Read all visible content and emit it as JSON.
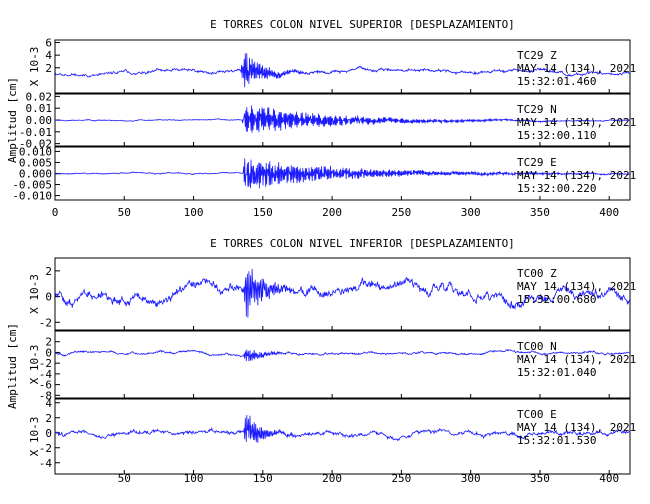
{
  "chart_data": [
    {
      "type": "line",
      "title": "E TORRES COLON NIVEL SUPERIOR [DESPLAZAMIENTO]",
      "ylabel": "Amplitud [cm]",
      "xlim": [
        0,
        415
      ],
      "xticks": [
        "0",
        "50",
        "100",
        "150",
        "200",
        "250",
        "300",
        "350",
        "400"
      ],
      "line_color": "#1c1cff",
      "panels": [
        {
          "channel": "TC29 Z",
          "ylim": [
            -2,
            6.4
          ],
          "yunit_label": "X 10-3",
          "yticks": [
            "6",
            "4",
            "2"
          ],
          "annotation": [
            "TC29   Z",
            "MAY 14 (134), 2021",
            "15:32:01.460"
          ],
          "series": {
            "base_amp": 0.35,
            "event_start": 134,
            "peak": 4.2,
            "decay": 14,
            "freq": 1.6,
            "offset": 1.2,
            "seed": 11
          }
        },
        {
          "channel": "TC29 N",
          "ylim": [
            -0.022,
            0.022
          ],
          "yunit_label": "",
          "yticks": [
            "0.02",
            "0.01",
            "0.00",
            "-0.01",
            "-0.02"
          ],
          "annotation": [
            "TC29   N",
            "MAY 14 (134), 2021",
            "15:32:00.110"
          ],
          "series": {
            "base_amp": 0.0006,
            "event_start": 135,
            "peak": 0.015,
            "decay": 60,
            "freq": 1.2,
            "offset": 0,
            "seed": 23
          }
        },
        {
          "channel": "TC29 E",
          "ylim": [
            -0.012,
            0.012
          ],
          "yunit_label": "",
          "yticks": [
            "0.010",
            "0.005",
            "0.000",
            "-0.005",
            "-0.010"
          ],
          "annotation": [
            "TC29   E",
            "MAY 14 (134), 2021",
            "15:32:00.220"
          ],
          "series": {
            "base_amp": 0.0004,
            "event_start": 135,
            "peak": 0.008,
            "decay": 70,
            "freq": 1.1,
            "offset": 0,
            "seed": 37
          }
        }
      ]
    },
    {
      "type": "line",
      "title": "E TORRES COLON NIVEL INFERIOR [DESPLAZAMIENTO]",
      "ylabel": "Amplitud [cm]",
      "xlim": [
        0,
        415
      ],
      "xticks": [
        "50",
        "100",
        "150",
        "200",
        "250",
        "300",
        "350",
        "400"
      ],
      "line_color": "#1c1cff",
      "panels": [
        {
          "channel": "TC00 Z",
          "ylim": [
            -2.6,
            3
          ],
          "yunit_label": "X 10-3",
          "yticks": [
            "2",
            "0",
            "-2"
          ],
          "annotation": [
            "TC00   Z",
            "MAY 14 (134), 2021",
            "15:32:00.680"
          ],
          "series": {
            "base_amp": 0.55,
            "event_start": 136,
            "peak": 2.8,
            "decay": 12,
            "freq": 1.8,
            "offset": 0.2,
            "seed": 51
          }
        },
        {
          "channel": "TC00 N",
          "ylim": [
            -8.5,
            4
          ],
          "yunit_label": "X 10-3",
          "yticks": [
            "2",
            "0",
            "-2",
            "-4",
            "-6",
            "-8"
          ],
          "annotation": [
            "TC00   N",
            "MAY 14 (134), 2021",
            "15:32:01.040"
          ],
          "series": {
            "base_amp": 0.3,
            "event_start": 136,
            "peak": 2.2,
            "decay": 10,
            "freq": 1.7,
            "offset": 0,
            "seed": 67
          }
        },
        {
          "channel": "TC00 E",
          "ylim": [
            -5.5,
            4.5
          ],
          "yunit_label": "X 10-3",
          "yticks": [
            "4",
            "2",
            "0",
            "-2",
            "-4"
          ],
          "annotation": [
            "TC00   E",
            "MAY 14 (134), 2021",
            "15:32:01.530"
          ],
          "series": {
            "base_amp": 0.4,
            "event_start": 136,
            "peak": 3.0,
            "decay": 11,
            "freq": 1.7,
            "offset": 0,
            "seed": 83
          }
        }
      ]
    }
  ]
}
